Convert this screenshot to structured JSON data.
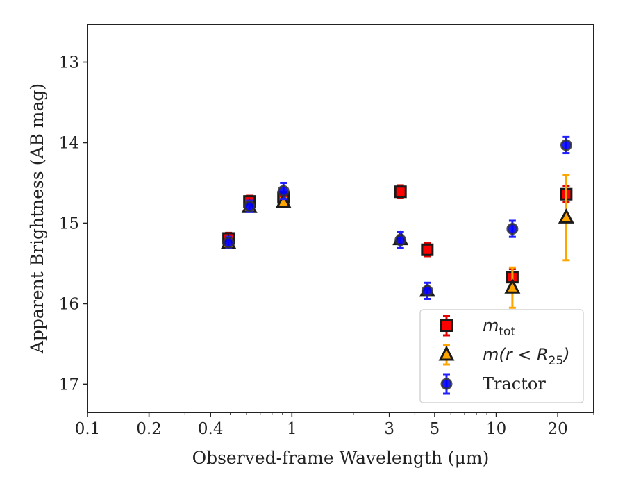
{
  "chart_data": {
    "type": "scatter",
    "xlabel": "Observed-frame Wavelength (μm)",
    "ylabel": "Apparent Brightness (AB mag)",
    "x_scale": "log",
    "xlim": [
      0.1,
      30
    ],
    "ylim": [
      17.35,
      12.53
    ],
    "y_inverted": true,
    "x_ticks": [
      0.1,
      0.2,
      0.4,
      1,
      3,
      5,
      10,
      20
    ],
    "x_tick_labels": [
      "0.1",
      "0.2",
      "0.4",
      "1",
      "3",
      "5",
      "10",
      "20"
    ],
    "y_ticks": [
      13,
      14,
      15,
      16,
      17
    ],
    "y_tick_labels": [
      "13",
      "14",
      "15",
      "16",
      "17"
    ],
    "legend_position": "lower-right",
    "series": [
      {
        "name_main": "m",
        "name_sub": "tot",
        "marker": "square",
        "color": "#ff0000",
        "edge_color": "#1a1a1a",
        "errorbar_color": "#e00000",
        "points": [
          {
            "x": 0.49,
            "y": 15.19,
            "err": 0.07
          },
          {
            "x": 0.62,
            "y": 14.73,
            "err": 0.07
          },
          {
            "x": 0.91,
            "y": 14.68,
            "err": 0.07
          },
          {
            "x": 3.4,
            "y": 14.61,
            "err": 0.08
          },
          {
            "x": 4.6,
            "y": 15.33,
            "err": 0.08
          },
          {
            "x": 12.0,
            "y": 15.67,
            "err": 0.1
          },
          {
            "x": 22.0,
            "y": 14.64,
            "err": 0.1
          }
        ]
      },
      {
        "name_main": "m(r < R",
        "name_sub": "25",
        "name_tail": ")",
        "marker": "triangle",
        "color": "#ffa500",
        "edge_color": "#1a1a1a",
        "errorbar_color": "#ffa500",
        "points": [
          {
            "x": 0.49,
            "y": 15.25,
            "err": 0.05
          },
          {
            "x": 0.62,
            "y": 14.8,
            "err": 0.05
          },
          {
            "x": 0.91,
            "y": 14.74,
            "err": 0.05
          },
          {
            "x": 3.4,
            "y": 15.2,
            "err": 0.05
          },
          {
            "x": 4.6,
            "y": 15.84,
            "err": 0.05
          },
          {
            "x": 12.0,
            "y": 15.8,
            "err": 0.25
          },
          {
            "x": 22.0,
            "y": 14.93,
            "err": 0.53
          }
        ]
      },
      {
        "name": "Tractor",
        "marker": "circle",
        "color": "#0000ff",
        "edge_color": "#333333",
        "errorbar_color": "#1f1fff",
        "points": [
          {
            "x": 0.49,
            "y": 15.24,
            "err": 0.07
          },
          {
            "x": 0.62,
            "y": 14.79,
            "err": 0.07
          },
          {
            "x": 0.91,
            "y": 14.6,
            "err": 0.1
          },
          {
            "x": 3.4,
            "y": 15.21,
            "err": 0.1
          },
          {
            "x": 4.6,
            "y": 15.84,
            "err": 0.1
          },
          {
            "x": 12.0,
            "y": 15.07,
            "err": 0.1
          },
          {
            "x": 22.0,
            "y": 14.03,
            "err": 0.1
          }
        ]
      }
    ]
  }
}
